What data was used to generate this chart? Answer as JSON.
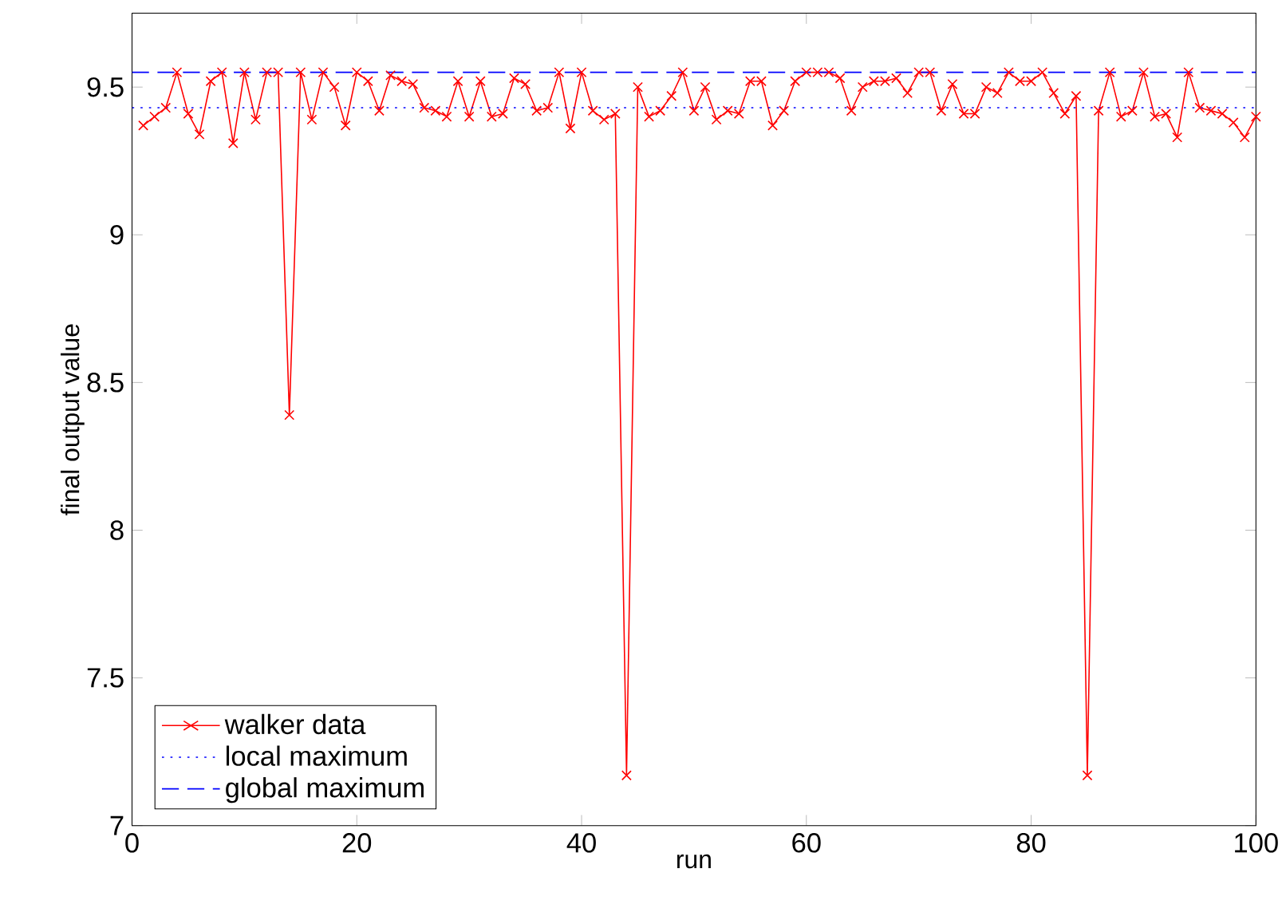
{
  "chart_data": {
    "type": "line",
    "xlabel": "run",
    "ylabel": "final output value",
    "x": [
      1,
      2,
      3,
      4,
      5,
      6,
      7,
      8,
      9,
      10,
      11,
      12,
      13,
      14,
      15,
      16,
      17,
      18,
      19,
      20,
      21,
      22,
      23,
      24,
      25,
      26,
      27,
      28,
      29,
      30,
      31,
      32,
      33,
      34,
      35,
      36,
      37,
      38,
      39,
      40,
      41,
      42,
      43,
      44,
      45,
      46,
      47,
      48,
      49,
      50,
      51,
      52,
      53,
      54,
      55,
      56,
      57,
      58,
      59,
      60,
      61,
      62,
      63,
      64,
      65,
      66,
      67,
      68,
      69,
      70,
      71,
      72,
      73,
      74,
      75,
      76,
      77,
      78,
      79,
      80,
      81,
      82,
      83,
      84,
      85,
      86,
      87,
      88,
      89,
      90,
      91,
      92,
      93,
      94,
      95,
      96,
      97,
      98,
      99,
      100
    ],
    "series": [
      {
        "name": "walker data",
        "color": "#ff0000",
        "marker": "cross",
        "line_style": "solid",
        "values": [
          9.37,
          9.4,
          9.43,
          9.55,
          9.41,
          9.34,
          9.52,
          9.55,
          9.31,
          9.55,
          9.39,
          9.55,
          9.55,
          8.39,
          9.55,
          9.39,
          9.55,
          9.5,
          9.37,
          9.55,
          9.52,
          9.42,
          9.54,
          9.52,
          9.51,
          9.43,
          9.42,
          9.4,
          9.52,
          9.4,
          9.52,
          9.4,
          9.41,
          9.53,
          9.51,
          9.42,
          9.43,
          9.55,
          9.36,
          9.55,
          9.42,
          9.39,
          9.41,
          7.17,
          9.5,
          9.4,
          9.42,
          9.47,
          9.55,
          9.42,
          9.5,
          9.39,
          9.42,
          9.41,
          9.52,
          9.52,
          9.37,
          9.42,
          9.52,
          9.55,
          9.55,
          9.55,
          9.53,
          9.42,
          9.5,
          9.52,
          9.52,
          9.53,
          9.48,
          9.55,
          9.55,
          9.42,
          9.51,
          9.41,
          9.41,
          9.5,
          9.48,
          9.55,
          9.52,
          9.52,
          9.55,
          9.48,
          9.41,
          9.47,
          7.17,
          9.42,
          9.55,
          9.4,
          9.42,
          9.55,
          9.4,
          9.41,
          9.33,
          9.55,
          9.43,
          9.42,
          9.41,
          9.38,
          9.33,
          9.4
        ]
      }
    ],
    "ref_lines": [
      {
        "axis": "y",
        "value": 9.43,
        "label": "local maximum",
        "color": "#0000ff",
        "line_style": "dotted"
      },
      {
        "axis": "y",
        "value": 9.55,
        "label": "global maximum",
        "color": "#0000ff",
        "line_style": "dashed"
      }
    ],
    "xlim": [
      0,
      100
    ],
    "ylim": [
      7,
      9.75
    ],
    "xticks": [
      0,
      20,
      40,
      60,
      80,
      100
    ],
    "yticks": [
      7,
      7.5,
      8,
      8.5,
      9,
      9.5
    ],
    "grid": false,
    "legend": "bottom left"
  }
}
